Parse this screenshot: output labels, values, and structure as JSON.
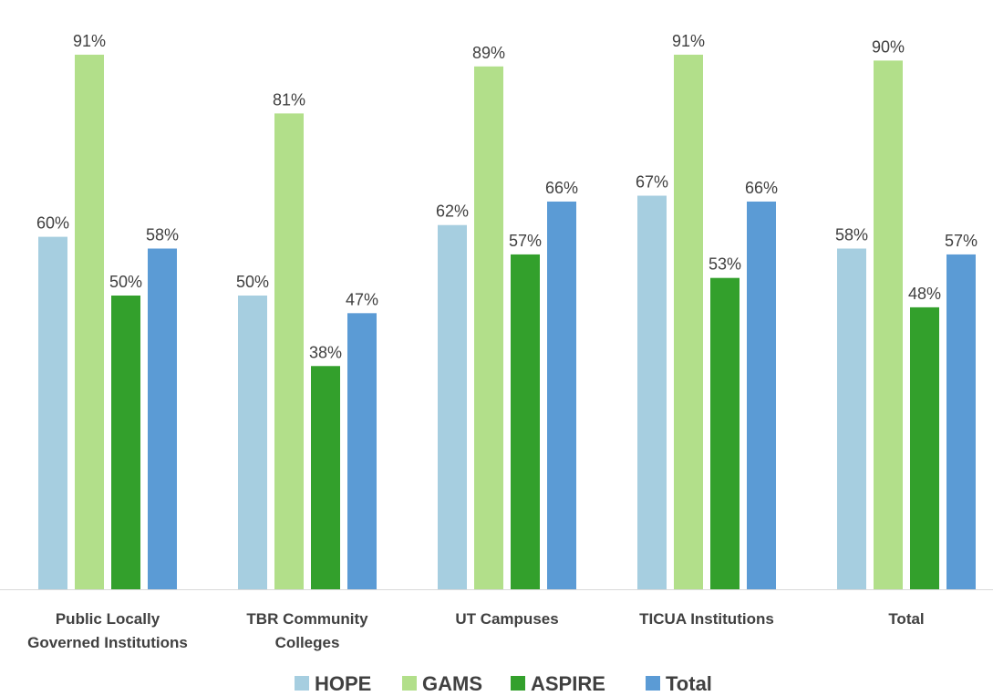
{
  "chart_data": {
    "type": "bar",
    "categories": [
      [
        "Public Locally",
        "Governed Institutions"
      ],
      [
        "TBR Community",
        "Colleges"
      ],
      [
        "UT Campuses"
      ],
      [
        "TICUA Institutions"
      ],
      [
        "Total"
      ]
    ],
    "series": [
      {
        "name": "HOPE",
        "color": "#a6cee0",
        "values": [
          60,
          50,
          62,
          67,
          58
        ],
        "labels": [
          "60%",
          "50%",
          "62%",
          "67%",
          "58%"
        ]
      },
      {
        "name": "GAMS",
        "color": "#b2df8a",
        "values": [
          91,
          81,
          89,
          91,
          90
        ],
        "labels": [
          "91%",
          "81%",
          "89%",
          "91%",
          "90%"
        ]
      },
      {
        "name": "ASPIRE",
        "color": "#33a02c",
        "values": [
          50,
          38,
          57,
          53,
          48
        ],
        "labels": [
          "50%",
          "38%",
          "57%",
          "53%",
          "48%"
        ]
      },
      {
        "name": "Total",
        "color": "#5b9bd5",
        "values": [
          58,
          47,
          66,
          66,
          57
        ],
        "labels": [
          "58%",
          "47%",
          "66%",
          "66%",
          "57%"
        ]
      }
    ],
    "ylim": [
      0,
      100
    ],
    "value_format": "percent",
    "grid": false,
    "legend_position": "bottom",
    "axis_color": "#d9d9d9"
  }
}
